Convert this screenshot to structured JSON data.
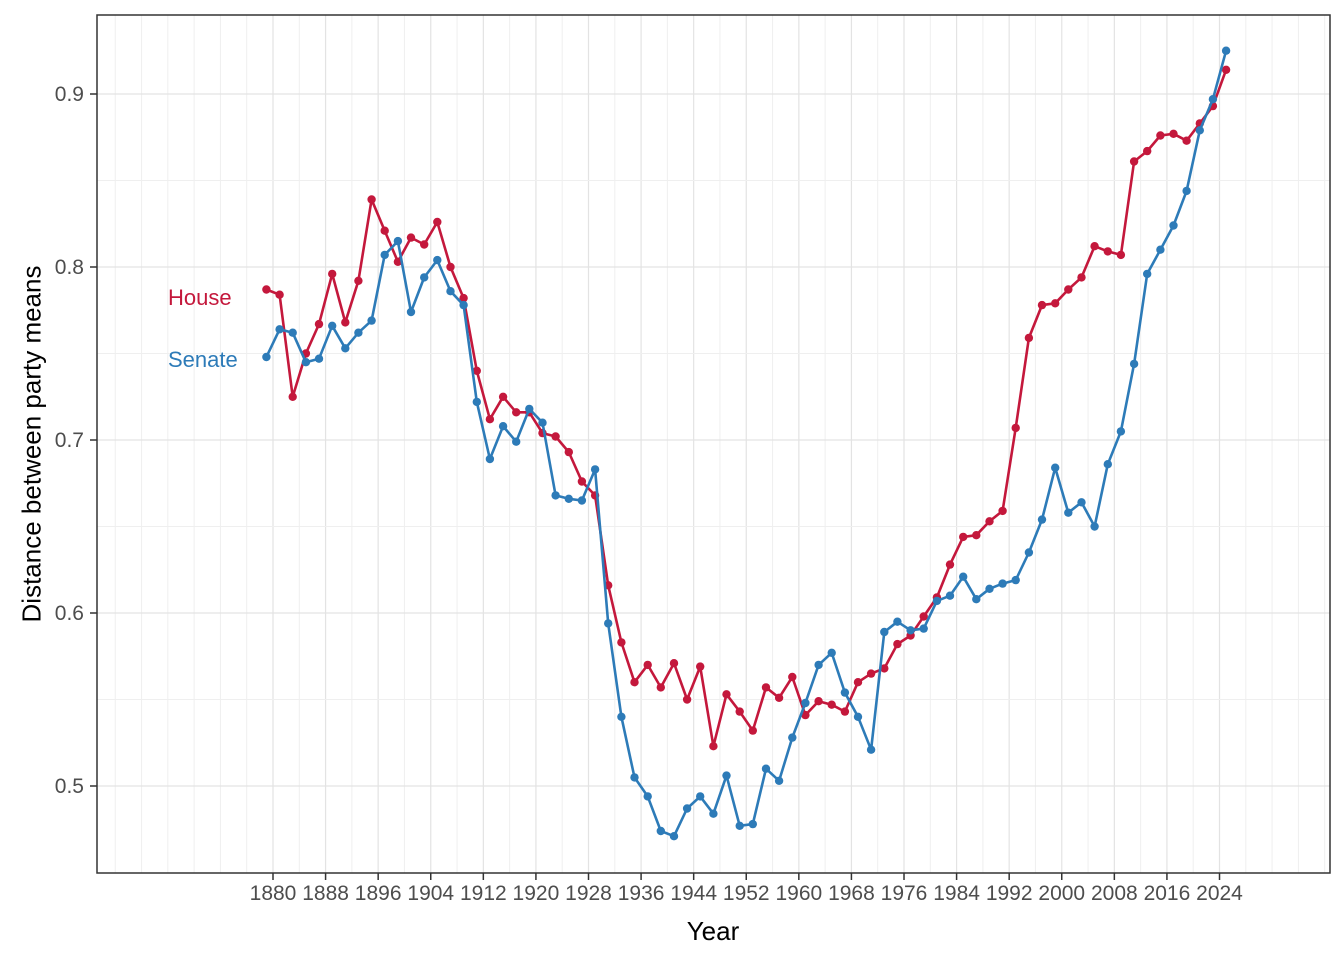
{
  "chart_data": {
    "type": "line",
    "title": "",
    "xlabel": "Year",
    "ylabel": "Distance between party means",
    "grid": "on",
    "legend_position": "inside-left",
    "xlim": [
      1853,
      2031
    ],
    "ylim": [
      0.449,
      0.946
    ],
    "x_ticks": [
      1880,
      1888,
      1896,
      1904,
      1912,
      1920,
      1928,
      1936,
      1944,
      1952,
      1960,
      1968,
      1976,
      1984,
      1992,
      2000,
      2008,
      2016,
      2024
    ],
    "y_ticks": [
      "0.5",
      "0.6",
      "0.7",
      "0.8",
      "0.9"
    ],
    "x": [
      1879,
      1881,
      1883,
      1885,
      1887,
      1889,
      1891,
      1893,
      1895,
      1897,
      1899,
      1901,
      1903,
      1905,
      1907,
      1909,
      1911,
      1913,
      1915,
      1917,
      1919,
      1921,
      1923,
      1925,
      1927,
      1929,
      1931,
      1933,
      1935,
      1937,
      1939,
      1941,
      1943,
      1945,
      1947,
      1949,
      1951,
      1953,
      1955,
      1957,
      1959,
      1961,
      1963,
      1965,
      1967,
      1969,
      1971,
      1973,
      1975,
      1977,
      1979,
      1981,
      1983,
      1985,
      1987,
      1989,
      1991,
      1993,
      1995,
      1997,
      1999,
      2001,
      2003,
      2005,
      2007,
      2009,
      2011,
      2013,
      2015,
      2017,
      2019,
      2021,
      2023,
      2025
    ],
    "series": [
      {
        "name": "House",
        "color": "#C4183C",
        "values": [
          0.787,
          0.784,
          0.725,
          0.75,
          0.767,
          0.796,
          0.768,
          0.792,
          0.839,
          0.821,
          0.803,
          0.817,
          0.813,
          0.826,
          0.8,
          0.782,
          0.74,
          0.712,
          0.725,
          0.716,
          0.716,
          0.704,
          0.702,
          0.693,
          0.676,
          0.668,
          0.616,
          0.583,
          0.56,
          0.57,
          0.557,
          0.571,
          0.55,
          0.569,
          0.523,
          0.553,
          0.543,
          0.532,
          0.557,
          0.551,
          0.563,
          0.541,
          0.549,
          0.547,
          0.543,
          0.56,
          0.565,
          0.568,
          0.582,
          0.587,
          0.598,
          0.609,
          0.628,
          0.644,
          0.645,
          0.653,
          0.659,
          0.707,
          0.759,
          0.778,
          0.779,
          0.787,
          0.794,
          0.812,
          0.809,
          0.807,
          0.861,
          0.867,
          0.876,
          0.877,
          0.873,
          0.883,
          0.893,
          0.914
        ]
      },
      {
        "name": "Senate",
        "color": "#2D7BB8",
        "values": [
          0.748,
          0.764,
          0.762,
          0.745,
          0.747,
          0.766,
          0.753,
          0.762,
          0.769,
          0.807,
          0.815,
          0.774,
          0.794,
          0.804,
          0.786,
          0.778,
          0.722,
          0.689,
          0.708,
          0.699,
          0.718,
          0.71,
          0.668,
          0.666,
          0.665,
          0.683,
          0.594,
          0.54,
          0.505,
          0.494,
          0.474,
          0.471,
          0.487,
          0.494,
          0.484,
          0.506,
          0.477,
          0.478,
          0.51,
          0.503,
          0.528,
          0.548,
          0.57,
          0.577,
          0.554,
          0.54,
          0.521,
          0.589,
          0.595,
          0.59,
          0.591,
          0.607,
          0.61,
          0.621,
          0.608,
          0.614,
          0.617,
          0.619,
          0.635,
          0.654,
          0.684,
          0.658,
          0.664,
          0.65,
          0.686,
          0.705,
          0.744,
          0.796,
          0.81,
          0.824,
          0.844,
          0.879,
          0.897,
          0.925
        ]
      }
    ],
    "series_labels": {
      "house": "House",
      "senate": "Senate"
    }
  }
}
